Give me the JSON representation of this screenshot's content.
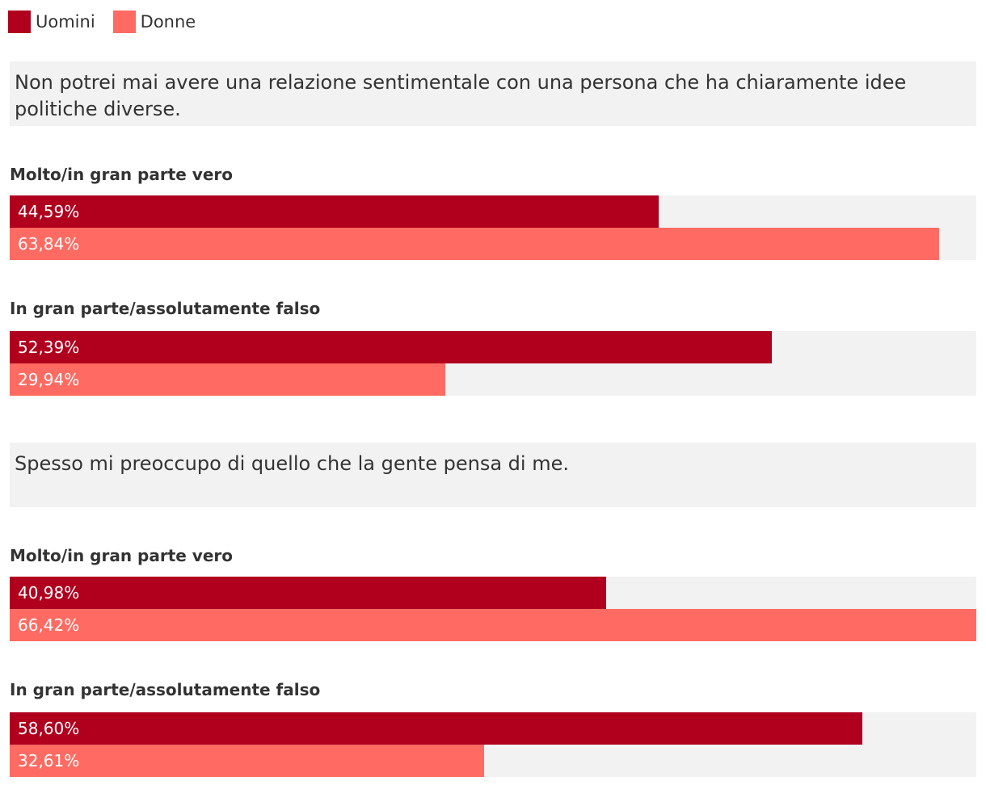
{
  "legend": [
    {
      "label": "Uomini",
      "color": "#b0001e"
    },
    {
      "label": "Donne",
      "color": "#ff6b62"
    }
  ],
  "chart_data": [
    {
      "type": "bar",
      "orientation": "horizontal",
      "title": "Non potrei mai avere una relazione sentimentale con una persona che ha chiaramente idee politiche diverse.",
      "categories": [
        "Molto/in gran parte vero",
        "In gran parte/assolutamente falso"
      ],
      "series": [
        {
          "name": "Uomini",
          "color": "#b0001e",
          "values": [
            44.59,
            52.39
          ],
          "labels": [
            "44,59%",
            "52,39%"
          ]
        },
        {
          "name": "Donne",
          "color": "#ff6b62",
          "values": [
            63.84,
            29.94
          ],
          "labels": [
            "63,84%",
            "29,94%"
          ]
        }
      ],
      "xlim": [
        0,
        66.42
      ],
      "grid": false,
      "legend_position": "top-left"
    },
    {
      "type": "bar",
      "orientation": "horizontal",
      "title": "Spesso mi preoccupo di quello che la gente pensa di me.",
      "categories": [
        "Molto/in gran parte vero",
        "In gran parte/assolutamente falso"
      ],
      "series": [
        {
          "name": "Uomini",
          "color": "#b0001e",
          "values": [
            40.98,
            58.6
          ],
          "labels": [
            "40,98%",
            "58,60%"
          ]
        },
        {
          "name": "Donne",
          "color": "#ff6b62",
          "values": [
            66.42,
            32.61
          ],
          "labels": [
            "66,42%",
            "32,61%"
          ]
        }
      ],
      "xlim": [
        0,
        66.42
      ],
      "grid": false,
      "legend_position": "top-left"
    }
  ]
}
